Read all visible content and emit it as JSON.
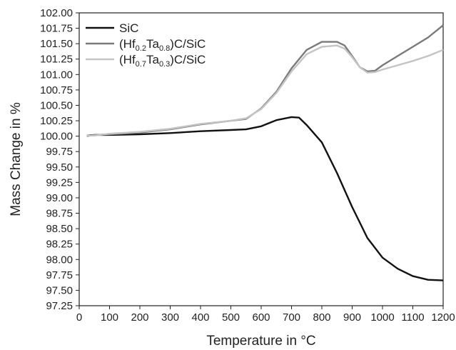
{
  "chart_data": {
    "type": "line",
    "title": "",
    "xlabel": "Temperature in °C",
    "ylabel": "Mass Change in %",
    "xlim": [
      0,
      1200
    ],
    "ylim": [
      97.25,
      102.0
    ],
    "x_ticks": [
      0,
      100,
      200,
      300,
      400,
      500,
      600,
      700,
      800,
      900,
      1000,
      1100,
      1200
    ],
    "x_tick_labels": [
      "0",
      "100",
      "200",
      "300",
      "400",
      "500",
      "600",
      "700",
      "800",
      "900",
      "1000",
      "1100",
      "1200"
    ],
    "y_ticks": [
      97.25,
      97.5,
      97.75,
      98.0,
      98.25,
      98.5,
      98.75,
      99.0,
      99.25,
      99.5,
      99.75,
      100.0,
      100.25,
      100.5,
      100.75,
      101.0,
      101.25,
      101.5,
      101.75,
      102.0
    ],
    "y_tick_labels": [
      "97.25",
      "97.50",
      "97.75",
      "98.00",
      "98.25",
      "98.50",
      "98.75",
      "99.00",
      "99.25",
      "99.50",
      "99.75",
      "100.00",
      "100.25",
      "100.50",
      "100.75",
      "101.00",
      "101.25",
      "101.50",
      "101.75",
      "102.00"
    ],
    "grid": false,
    "legend_position": "top-left",
    "series": [
      {
        "name": "SiC",
        "label_parts": [
          "SiC"
        ],
        "color": "#111111",
        "x": [
          25,
          50,
          100,
          200,
          300,
          400,
          500,
          550,
          600,
          650,
          700,
          725,
          750,
          800,
          850,
          900,
          950,
          1000,
          1050,
          1100,
          1150,
          1200
        ],
        "y": [
          100.01,
          100.02,
          100.02,
          100.03,
          100.05,
          100.08,
          100.1,
          100.11,
          100.16,
          100.26,
          100.31,
          100.3,
          100.18,
          99.9,
          99.4,
          98.85,
          98.35,
          98.03,
          97.85,
          97.73,
          97.67,
          97.66
        ]
      },
      {
        "name": "(Hf0.2Ta0.8)C/SiC",
        "label_parts": [
          "(Hf",
          "0.2",
          "Ta",
          "0.8",
          ")C/SiC"
        ],
        "color": "#7a7a7a",
        "x": [
          25,
          50,
          100,
          200,
          300,
          400,
          500,
          550,
          600,
          650,
          700,
          750,
          800,
          850,
          875,
          900,
          925,
          950,
          975,
          1000,
          1050,
          1100,
          1150,
          1200
        ],
        "y": [
          100.0,
          100.02,
          100.03,
          100.06,
          100.11,
          100.19,
          100.25,
          100.28,
          100.45,
          100.72,
          101.1,
          101.4,
          101.53,
          101.53,
          101.47,
          101.3,
          101.12,
          101.05,
          101.06,
          101.15,
          101.3,
          101.45,
          101.6,
          101.8
        ]
      },
      {
        "name": "(Hf0.7Ta0.3)C/SiC",
        "label_parts": [
          "(Hf",
          "0.7",
          "Ta",
          "0.3",
          ")C/SiC"
        ],
        "color": "#c4c4c4",
        "x": [
          25,
          50,
          100,
          200,
          300,
          400,
          500,
          550,
          600,
          650,
          700,
          750,
          800,
          850,
          875,
          900,
          925,
          950,
          975,
          1000,
          1050,
          1100,
          1150,
          1200
        ],
        "y": [
          100.01,
          100.01,
          100.04,
          100.07,
          100.12,
          100.2,
          100.25,
          100.29,
          100.44,
          100.7,
          101.05,
          101.33,
          101.45,
          101.47,
          101.42,
          101.28,
          101.12,
          101.03,
          101.04,
          101.08,
          101.15,
          101.22,
          101.3,
          101.4
        ]
      }
    ]
  }
}
